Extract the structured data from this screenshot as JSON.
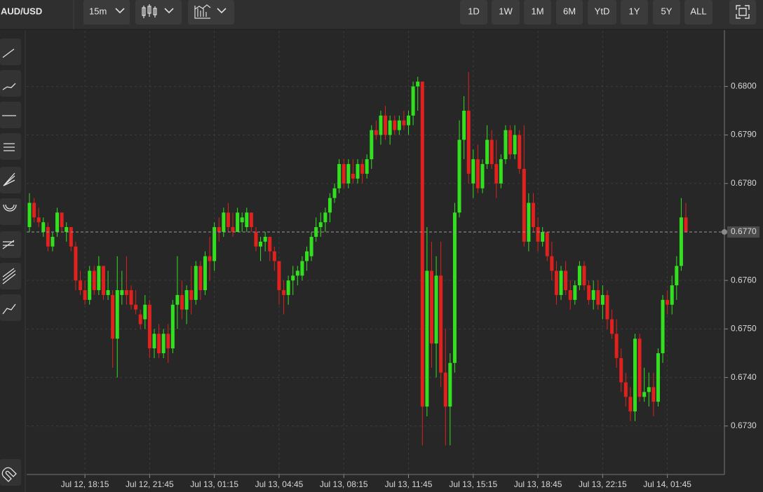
{
  "toolbar": {
    "symbol": "AUD/USD",
    "interval": "15m",
    "ranges": [
      "1D",
      "1W",
      "1M",
      "6M",
      "YtD",
      "1Y",
      "5Y",
      "ALL"
    ]
  },
  "chart_data": {
    "type": "candlestick",
    "grid": true,
    "up_color": "#33e01f",
    "down_color": "#e0211d",
    "ylim": [
      0.672,
      0.68106
    ],
    "yticks": [
      {
        "value": 0.673,
        "label": "0.6730"
      },
      {
        "value": 0.674,
        "label": "0.6740"
      },
      {
        "value": 0.675,
        "label": "0.6750"
      },
      {
        "value": 0.676,
        "label": "0.6760"
      },
      {
        "value": 0.677,
        "label": "0.6770"
      },
      {
        "value": 0.678,
        "label": "0.6780"
      },
      {
        "value": 0.679,
        "label": "0.6790"
      },
      {
        "value": 0.68,
        "label": "0.6800"
      }
    ],
    "last_price": {
      "value": 0.677,
      "label": "0.6770"
    },
    "categories": [
      null,
      null,
      null,
      null,
      null,
      null,
      null,
      null,
      null,
      null,
      null,
      null,
      "Jul 12, 18:15",
      null,
      null,
      null,
      null,
      null,
      null,
      null,
      null,
      null,
      null,
      null,
      null,
      null,
      "Jul 12, 21:45",
      null,
      null,
      null,
      null,
      null,
      null,
      null,
      null,
      null,
      null,
      null,
      null,
      null,
      "Jul 13, 01:15",
      null,
      null,
      null,
      null,
      null,
      null,
      null,
      null,
      null,
      null,
      null,
      null,
      null,
      "Jul 13, 04:45",
      null,
      null,
      null,
      null,
      null,
      null,
      null,
      null,
      null,
      null,
      null,
      null,
      null,
      "Jul 13, 08:15",
      null,
      null,
      null,
      null,
      null,
      null,
      null,
      null,
      null,
      null,
      null,
      null,
      null,
      "Jul 13, 11:45",
      null,
      null,
      null,
      null,
      null,
      null,
      null,
      null,
      null,
      null,
      null,
      null,
      null,
      "Jul 13, 15:15",
      null,
      null,
      null,
      null,
      null,
      null,
      null,
      null,
      null,
      null,
      null,
      null,
      null,
      "Jul 13, 18:45",
      null,
      null,
      null,
      null,
      null,
      null,
      null,
      null,
      null,
      null,
      null,
      null,
      null,
      "Jul 13, 22:15",
      null,
      null,
      null,
      null,
      null,
      null,
      null,
      null,
      null,
      null,
      null,
      null,
      null,
      "Jul 14, 01:45",
      null,
      null,
      null,
      null
    ],
    "open": [
      0.6771,
      0.6776,
      0.6773,
      0.677,
      0.6771,
      0.6767,
      0.677,
      0.6774,
      0.677,
      0.6771,
      0.6767,
      0.676,
      0.6758,
      0.6756,
      0.6762,
      0.6758,
      0.6763,
      0.6757,
      0.6757,
      0.6748,
      0.6757,
      0.6758,
      0.6758,
      0.6755,
      0.6753,
      0.6752,
      0.6755,
      0.6746,
      0.6749,
      0.6745,
      0.6749,
      0.6746,
      0.6755,
      0.6757,
      0.6754,
      0.6758,
      0.6756,
      0.6763,
      0.6758,
      0.6765,
      0.6764,
      0.6771,
      0.677,
      0.6774,
      0.6771,
      0.677,
      0.6772,
      0.6771,
      0.6774,
      0.677,
      0.6767,
      0.6768,
      0.6769,
      0.6766,
      0.6764,
      0.6758,
      0.6757,
      0.676,
      0.6761,
      0.6761,
      0.6764,
      0.6765,
      0.6769,
      0.6771,
      0.6772,
      0.6774,
      0.6777,
      0.6779,
      0.6784,
      0.678,
      0.6782,
      0.6781,
      0.6784,
      0.6782,
      0.6785,
      0.6791,
      0.679,
      0.6794,
      0.679,
      0.6793,
      0.6791,
      0.6793,
      0.6792,
      0.6794,
      0.68,
      0.6801,
      0.6734,
      0.6762,
      0.6747,
      0.6761,
      0.6741,
      0.6734,
      0.6743,
      0.6774,
      0.6789,
      0.6795,
      0.678,
      0.6785,
      0.6779,
      0.6784,
      0.6789,
      0.6784,
      0.678,
      0.6785,
      0.6791,
      0.6786,
      0.679,
      0.6783,
      0.6768,
      0.6776,
      0.6771,
      0.6768,
      0.677,
      0.6765,
      0.6762,
      0.6757,
      0.6762,
      0.6758,
      0.6756,
      0.6759,
      0.6763,
      0.6759,
      0.6756,
      0.6758,
      0.6755,
      0.6757,
      0.6752,
      0.6749,
      0.6744,
      0.6739,
      0.6736,
      0.6733,
      0.6748,
      0.6736,
      0.6737,
      0.6738,
      0.6735,
      0.6745,
      0.6756,
      0.6755,
      0.6759,
      0.6763,
      0.6773
    ],
    "high": [
      0.6778,
      0.6777,
      0.6775,
      0.6773,
      0.6772,
      0.677,
      0.6775,
      0.6774,
      0.6772,
      0.6771,
      0.6768,
      0.6762,
      0.676,
      0.6763,
      0.6763,
      0.6765,
      0.6763,
      0.6762,
      0.6758,
      0.6765,
      0.6762,
      0.6765,
      0.6759,
      0.6758,
      0.6754,
      0.6757,
      0.6756,
      0.675,
      0.6751,
      0.675,
      0.6751,
      0.6756,
      0.6765,
      0.676,
      0.6759,
      0.6763,
      0.6764,
      0.6764,
      0.6766,
      0.6769,
      0.6772,
      0.6773,
      0.6775,
      0.6776,
      0.6774,
      0.6775,
      0.6774,
      0.6775,
      0.6774,
      0.6771,
      0.6769,
      0.677,
      0.6769,
      0.6767,
      0.6764,
      0.676,
      0.6761,
      0.6763,
      0.6763,
      0.6765,
      0.6767,
      0.677,
      0.6773,
      0.6774,
      0.6775,
      0.6778,
      0.678,
      0.6785,
      0.6785,
      0.6785,
      0.6785,
      0.6785,
      0.6785,
      0.6786,
      0.6792,
      0.6793,
      0.6795,
      0.6796,
      0.6794,
      0.6794,
      0.6794,
      0.6795,
      0.6795,
      0.6801,
      0.6802,
      0.6801,
      0.6771,
      0.6768,
      0.6765,
      0.6768,
      0.675,
      0.6745,
      0.6776,
      0.6793,
      0.6798,
      0.6803,
      0.6787,
      0.6788,
      0.6785,
      0.6792,
      0.6791,
      0.6789,
      0.6786,
      0.6792,
      0.6792,
      0.6792,
      0.6791,
      0.6792,
      0.6778,
      0.6778,
      0.6773,
      0.6771,
      0.677,
      0.6768,
      0.6764,
      0.6763,
      0.6764,
      0.676,
      0.676,
      0.6764,
      0.6764,
      0.676,
      0.676,
      0.676,
      0.6759,
      0.6758,
      0.6754,
      0.6752,
      0.6746,
      0.6741,
      0.6738,
      0.6749,
      0.6749,
      0.6742,
      0.6741,
      0.6741,
      0.6746,
      0.6757,
      0.6758,
      0.6761,
      0.6765,
      0.6777,
      0.6776
    ],
    "low": [
      0.677,
      0.6772,
      0.6771,
      0.6769,
      0.6766,
      0.6766,
      0.6769,
      0.677,
      0.6768,
      0.6766,
      0.6758,
      0.6757,
      0.6755,
      0.6755,
      0.6757,
      0.6757,
      0.6756,
      0.6756,
      0.6742,
      0.674,
      0.6755,
      0.6755,
      0.6754,
      0.6753,
      0.675,
      0.675,
      0.6744,
      0.6744,
      0.6744,
      0.6744,
      0.6743,
      0.6745,
      0.675,
      0.6752,
      0.6751,
      0.6753,
      0.6755,
      0.6756,
      0.6757,
      0.676,
      0.6762,
      0.6768,
      0.6769,
      0.677,
      0.6769,
      0.677,
      0.677,
      0.677,
      0.677,
      0.6766,
      0.6764,
      0.6766,
      0.6764,
      0.6762,
      0.6755,
      0.6753,
      0.6755,
      0.6757,
      0.6759,
      0.676,
      0.6762,
      0.6764,
      0.6768,
      0.6769,
      0.677,
      0.6772,
      0.6776,
      0.6778,
      0.6779,
      0.6779,
      0.678,
      0.678,
      0.678,
      0.6781,
      0.6783,
      0.6789,
      0.6788,
      0.6789,
      0.6788,
      0.679,
      0.679,
      0.6791,
      0.679,
      0.6792,
      0.6795,
      0.6726,
      0.6732,
      0.6742,
      0.674,
      0.6738,
      0.6726,
      0.6726,
      0.6741,
      0.6773,
      0.6785,
      0.678,
      0.6777,
      0.6778,
      0.6778,
      0.6783,
      0.6783,
      0.6777,
      0.6779,
      0.6784,
      0.6785,
      0.6785,
      0.6782,
      0.6767,
      0.6766,
      0.677,
      0.6766,
      0.6767,
      0.6764,
      0.676,
      0.6755,
      0.6756,
      0.6757,
      0.6754,
      0.6755,
      0.6758,
      0.6758,
      0.6755,
      0.6754,
      0.6754,
      0.6752,
      0.675,
      0.6748,
      0.6742,
      0.6737,
      0.6734,
      0.6731,
      0.6731,
      0.6735,
      0.6735,
      0.6734,
      0.6732,
      0.6734,
      0.6743,
      0.6753,
      0.6753,
      0.6756,
      0.6762,
      0.677
    ],
    "close": [
      0.6776,
      0.6773,
      0.6772,
      0.6772,
      0.6767,
      0.6769,
      0.6774,
      0.6771,
      0.6771,
      0.6767,
      0.676,
      0.6758,
      0.6756,
      0.6762,
      0.6758,
      0.6763,
      0.6757,
      0.6758,
      0.6748,
      0.6758,
      0.6758,
      0.6757,
      0.6755,
      0.6754,
      0.6751,
      0.6755,
      0.6746,
      0.6749,
      0.6745,
      0.6749,
      0.6746,
      0.6755,
      0.6757,
      0.6754,
      0.6758,
      0.6756,
      0.6763,
      0.6758,
      0.6765,
      0.6764,
      0.6771,
      0.677,
      0.6774,
      0.6771,
      0.677,
      0.6774,
      0.6773,
      0.6774,
      0.6771,
      0.6767,
      0.6768,
      0.6769,
      0.6766,
      0.6764,
      0.6758,
      0.6757,
      0.676,
      0.6761,
      0.6762,
      0.6764,
      0.6766,
      0.6769,
      0.6771,
      0.6772,
      0.6774,
      0.6777,
      0.6779,
      0.6784,
      0.678,
      0.6784,
      0.6781,
      0.6784,
      0.6782,
      0.6785,
      0.6791,
      0.679,
      0.6794,
      0.679,
      0.6793,
      0.6791,
      0.6793,
      0.6792,
      0.6794,
      0.68,
      0.6801,
      0.6734,
      0.6762,
      0.6747,
      0.6761,
      0.6741,
      0.6734,
      0.6743,
      0.6774,
      0.6789,
      0.6795,
      0.6782,
      0.6785,
      0.6779,
      0.6784,
      0.6789,
      0.6784,
      0.678,
      0.6785,
      0.6791,
      0.6786,
      0.679,
      0.6783,
      0.6768,
      0.6776,
      0.6771,
      0.6768,
      0.677,
      0.6765,
      0.6762,
      0.6757,
      0.6762,
      0.6758,
      0.6756,
      0.6759,
      0.6763,
      0.6759,
      0.6756,
      0.6758,
      0.6755,
      0.6757,
      0.6752,
      0.6749,
      0.6744,
      0.6739,
      0.6736,
      0.6733,
      0.6748,
      0.6736,
      0.6737,
      0.6738,
      0.6735,
      0.6745,
      0.6756,
      0.6755,
      0.6759,
      0.6763,
      0.6773,
      0.677
    ]
  }
}
